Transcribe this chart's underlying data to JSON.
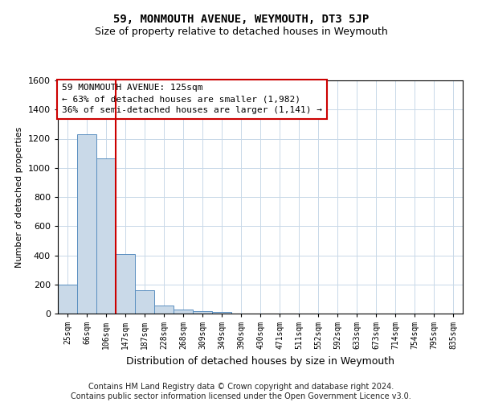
{
  "title": "59, MONMOUTH AVENUE, WEYMOUTH, DT3 5JP",
  "subtitle": "Size of property relative to detached houses in Weymouth",
  "xlabel": "Distribution of detached houses by size in Weymouth",
  "ylabel": "Number of detached properties",
  "categories": [
    "25sqm",
    "66sqm",
    "106sqm",
    "147sqm",
    "187sqm",
    "228sqm",
    "268sqm",
    "309sqm",
    "349sqm",
    "390sqm",
    "430sqm",
    "471sqm",
    "511sqm",
    "552sqm",
    "592sqm",
    "633sqm",
    "673sqm",
    "714sqm",
    "754sqm",
    "795sqm",
    "835sqm"
  ],
  "values": [
    200,
    1230,
    1065,
    410,
    160,
    55,
    25,
    15,
    12,
    0,
    0,
    0,
    0,
    0,
    0,
    0,
    0,
    0,
    0,
    0,
    0
  ],
  "bar_color": "#c9d9e8",
  "bar_edge_color": "#5a8fc0",
  "vline_color": "#cc0000",
  "vline_position": 2.5,
  "ylim": [
    0,
    1600
  ],
  "yticks": [
    0,
    200,
    400,
    600,
    800,
    1000,
    1200,
    1400,
    1600
  ],
  "annotation_text": "59 MONMOUTH AVENUE: 125sqm\n← 63% of detached houses are smaller (1,982)\n36% of semi-detached houses are larger (1,141) →",
  "footer_line1": "Contains HM Land Registry data © Crown copyright and database right 2024.",
  "footer_line2": "Contains public sector information licensed under the Open Government Licence v3.0.",
  "background_color": "#ffffff",
  "grid_color": "#c8d8e8",
  "title_fontsize": 10,
  "subtitle_fontsize": 9,
  "annotation_fontsize": 8,
  "footer_fontsize": 7,
  "ylabel_fontsize": 8,
  "xlabel_fontsize": 9,
  "ytick_fontsize": 8,
  "xtick_fontsize": 7
}
